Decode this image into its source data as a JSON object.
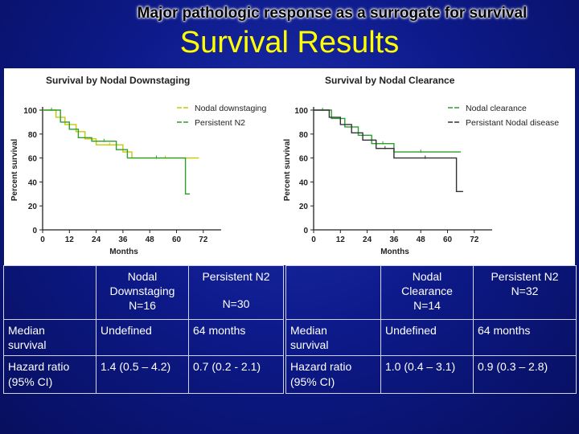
{
  "slide": {
    "supertitle": "Major pathologic response as a surrogate for survival",
    "title": "Survival Results"
  },
  "colors": {
    "yellow": "#c8c800",
    "green": "#2e9e2e",
    "dark": "#333333"
  },
  "chart_data": [
    {
      "type": "line",
      "title": "Survival by Nodal Downstaging",
      "xlabel": "Months",
      "ylabel": "Percent survival",
      "xlim": [
        0,
        80
      ],
      "ylim": [
        0,
        100
      ],
      "xticks": [
        "0",
        "12",
        "24",
        "36",
        "48",
        "60",
        "72"
      ],
      "yticks": [
        "0",
        "20",
        "40",
        "60",
        "80",
        "100"
      ],
      "legend_position": "top-right",
      "series": [
        {
          "name": "Nodal downstaging",
          "color": "yellow",
          "steps": [
            [
              0,
              100
            ],
            [
              6,
              100
            ],
            [
              6,
              94
            ],
            [
              10,
              94
            ],
            [
              10,
              88
            ],
            [
              15,
              88
            ],
            [
              15,
              82
            ],
            [
              19,
              82
            ],
            [
              19,
              76
            ],
            [
              24,
              76
            ],
            [
              24,
              71
            ],
            [
              36,
              71
            ],
            [
              36,
              65
            ],
            [
              40,
              65
            ],
            [
              40,
              60
            ],
            [
              70,
              60
            ],
            [
              70,
              60
            ]
          ]
        },
        {
          "name": "Persistent N2",
          "color": "green",
          "steps": [
            [
              0,
              100
            ],
            [
              8,
              100
            ],
            [
              8,
              90
            ],
            [
              12,
              90
            ],
            [
              12,
              84
            ],
            [
              16,
              84
            ],
            [
              16,
              77
            ],
            [
              22,
              77
            ],
            [
              22,
              74
            ],
            [
              33,
              74
            ],
            [
              33,
              67
            ],
            [
              38,
              67
            ],
            [
              38,
              60
            ],
            [
              64,
              60
            ],
            [
              64,
              30
            ],
            [
              66,
              30
            ]
          ]
        }
      ]
    },
    {
      "type": "line",
      "title": "Survival by Nodal Clearance",
      "xlabel": "Months",
      "ylabel": "Percent survival",
      "xlim": [
        0,
        80
      ],
      "ylim": [
        0,
        100
      ],
      "xticks": [
        "0",
        "12",
        "24",
        "36",
        "48",
        "60",
        "72"
      ],
      "yticks": [
        "0",
        "20",
        "40",
        "60",
        "80",
        "100"
      ],
      "legend_position": "top-right",
      "series": [
        {
          "name": "Nodal clearance",
          "color": "green",
          "steps": [
            [
              0,
              100
            ],
            [
              8,
              100
            ],
            [
              8,
              93
            ],
            [
              14,
              93
            ],
            [
              14,
              86
            ],
            [
              20,
              86
            ],
            [
              20,
              79
            ],
            [
              26,
              79
            ],
            [
              26,
              72
            ],
            [
              36,
              72
            ],
            [
              36,
              65
            ],
            [
              60,
              65
            ],
            [
              60,
              65
            ],
            [
              66,
              65
            ]
          ]
        },
        {
          "name": "Persistant Nodal disease",
          "color": "dark",
          "steps": [
            [
              0,
              100
            ],
            [
              7,
              100
            ],
            [
              7,
              94
            ],
            [
              12,
              94
            ],
            [
              12,
              88
            ],
            [
              17,
              88
            ],
            [
              17,
              81
            ],
            [
              22,
              81
            ],
            [
              22,
              75
            ],
            [
              28,
              75
            ],
            [
              28,
              68
            ],
            [
              36,
              68
            ],
            [
              36,
              60
            ],
            [
              64,
              60
            ],
            [
              64,
              32
            ],
            [
              67,
              32
            ]
          ]
        }
      ]
    }
  ],
  "tables": {
    "left": {
      "col1_header_line1": "Nodal",
      "col1_header_line2": "Downstaging",
      "col1_header_line3": "N=16",
      "col2_header_line1": "Persistent N2",
      "col2_header_line2": "N=30",
      "row1_label_line1": "Median",
      "row1_label_line2": "survival",
      "row1_col1": "Undefined",
      "row1_col2": "64 months",
      "row2_label_line1": "Hazard ratio",
      "row2_label_line2": "(95% CI)",
      "row2_col1": "1.4 (0.5 – 4.2)",
      "row2_col2": "0.7 (0.2 - 2.1)"
    },
    "right": {
      "col1_header_line1": "Nodal",
      "col1_header_line2": "Clearance",
      "col1_header_line3": "N=14",
      "col2_header_line1": "Persistent N2",
      "col2_header_line2": "N=32",
      "row1_label_line1": "Median",
      "row1_label_line2": "survival",
      "row1_col1": "Undefined",
      "row1_col2": "64 months",
      "row2_label_line1": "Hazard ratio",
      "row2_label_line2": "(95% CI)",
      "row2_col1": "1.0 (0.4 – 3.1)",
      "row2_col2": "0.9 (0.3 – 2.8)"
    }
  }
}
